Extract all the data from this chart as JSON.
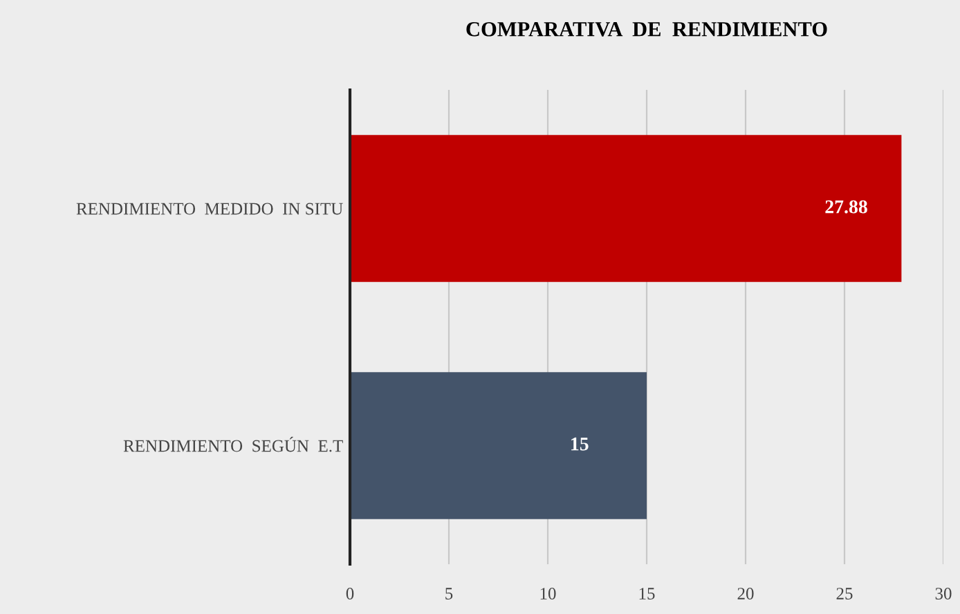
{
  "chart_data": {
    "type": "bar",
    "orientation": "horizontal",
    "title": "COMPARATIVA  DE  RENDIMIENTO",
    "categories": [
      "RENDIMIENTO  MEDIDO  IN SITU",
      "RENDIMIENTO  SEGÚN  E.T"
    ],
    "values": [
      27.88,
      15
    ],
    "colors": [
      "#c00000",
      "#44546a"
    ],
    "xlim": [
      0,
      30
    ],
    "xticks": [
      0,
      5,
      10,
      15,
      20,
      25,
      30
    ],
    "grid": "x",
    "data_labels": true
  }
}
